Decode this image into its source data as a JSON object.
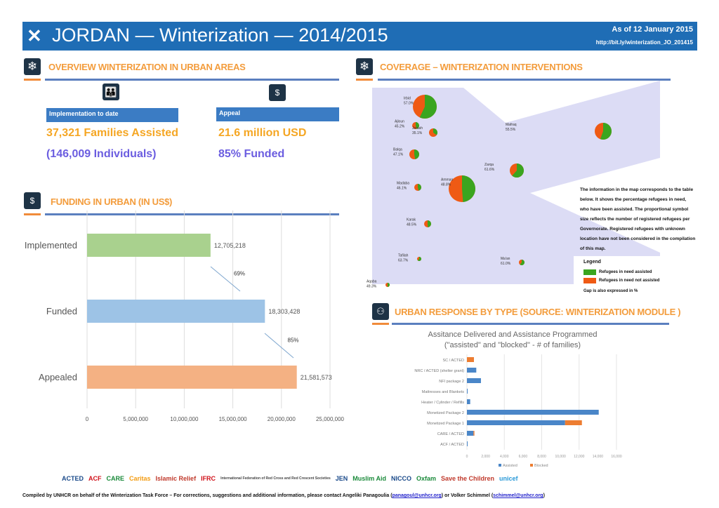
{
  "header": {
    "title": "JORDAN — Winterization — 2014/2015",
    "date": "As of 12 January 2015",
    "url": "http://bit.ly/winterization_JO_201415",
    "icon": "arrows-in-icon"
  },
  "overview": {
    "title": "OVERVIEW WINTERIZATION IN URBAN AREAS",
    "implementation_label": "Implementation to date",
    "families": "37,321 Families Assisted",
    "individuals": "(146,009 Individuals)",
    "appeal_label": "Appeal",
    "appeal_amount": "21.6 million USD",
    "funded": "85% Funded"
  },
  "coverage": {
    "title": "COVERAGE – WINTERIZATION INTERVENTIONS",
    "note": "The information in the map corresponds to the table below. It shows the percentage refugees in need, who have been assisted. The proportional symbol size reflects the number of registered refugees per Governorate. Registered refugees with unknown location have not been considered in the compilation of this map.",
    "legend_title": "Legend",
    "legend_assisted": "Refugees in need assisted",
    "legend_not_assisted": "Refugees in need not assisted",
    "legend_gap": "Gap is also expressed in %",
    "colors": {
      "assisted": "#3aa51f",
      "not_assisted": "#ef5a14"
    },
    "governorates": [
      {
        "name": "Irbid",
        "pct": "57.0%"
      },
      {
        "name": "Ajloun",
        "pct": "45.2%"
      },
      {
        "name": "Jerash",
        "pct": "35.1%"
      },
      {
        "name": "Mafraq",
        "pct": "55.5%"
      },
      {
        "name": "Balqa",
        "pct": "47.1%"
      },
      {
        "name": "Zarqa",
        "pct": "61.6%"
      },
      {
        "name": "Amman",
        "pct": "48.8%"
      },
      {
        "name": "Madaba",
        "pct": "46.1%"
      },
      {
        "name": "Karak",
        "pct": "48.5%"
      },
      {
        "name": "Tafilah",
        "pct": "63.7%"
      },
      {
        "name": "Ma'an",
        "pct": "61.0%"
      },
      {
        "name": "Aqaba",
        "pct": "49.3%"
      }
    ]
  },
  "funding": {
    "title": "FUNDING IN URBAN (IN US$)"
  },
  "response": {
    "title": "URBAN RESPONSE BY TYPE (SOURCE: WINTERIZATION MODULE )"
  },
  "chart_data": [
    {
      "type": "bar",
      "orientation": "horizontal",
      "categories": [
        "Implemented",
        "Funded",
        "Appealed"
      ],
      "values": [
        12705218,
        18303428,
        21581573
      ],
      "data_labels": [
        "12,705,218",
        "18,303,428",
        "21,581,573"
      ],
      "colors": [
        "#a9d18e",
        "#9dc3e6",
        "#f4b183"
      ],
      "annotations": [
        "69%",
        "85%"
      ],
      "xlim": [
        0,
        25000000
      ],
      "xticks": [
        "0",
        "5,000,000",
        "10,000,000",
        "15,000,000",
        "20,000,000",
        "25,000,000"
      ],
      "grid": true
    },
    {
      "type": "bar",
      "orientation": "horizontal",
      "stacked": true,
      "title": "Assitance Delivered and Assistance Programmed",
      "subtitle": "(\"assisted\" and \"blocked\" - # of families)",
      "categories": [
        "SC / ACTED",
        "NRC / ACTED (shelter grant)",
        "NFI package 2",
        "Mattresses and Blankets",
        "Heater / Cylinder / Refills",
        "Monetized Package 2",
        "Monetized Package 1",
        "CARE / ACTED",
        "ACF / ACTED"
      ],
      "series": [
        {
          "name": "Assisted",
          "color": "#4a86c8",
          "values": [
            0,
            1000,
            1500,
            50,
            350,
            14100,
            10500,
            700,
            50
          ]
        },
        {
          "name": "Blocked",
          "color": "#ed7d31",
          "values": [
            750,
            0,
            0,
            0,
            0,
            0,
            1800,
            100,
            0
          ]
        }
      ],
      "xlim": [
        0,
        16000
      ],
      "xticks": [
        "0",
        "2,000",
        "4,000",
        "6,000",
        "8,000",
        "10,000",
        "12,000",
        "14,000",
        "16,000"
      ],
      "legend": "bottom",
      "grid": true
    }
  ],
  "partners": [
    "ACTED",
    "ACF",
    "CARE",
    "Caritas",
    "Islamic Relief",
    "IFRC",
    "International Federation of Red Cross and Red Crescent Societies",
    "JEN",
    "Muslim Aid",
    "NICCO",
    "Oxfam",
    "Save the Children",
    "unicef"
  ],
  "footer": {
    "text": "Compiled by UNHCR on behalf of the Winterization Task Force – For corrections, suggestions and additional information, please contact  Angeliki Panagoulia (",
    "email1": "panagoul@unhcr.org",
    "mid": ") or Volker Schimmel (",
    "email2": "schimmel@unhcr.org",
    "end": ")"
  }
}
